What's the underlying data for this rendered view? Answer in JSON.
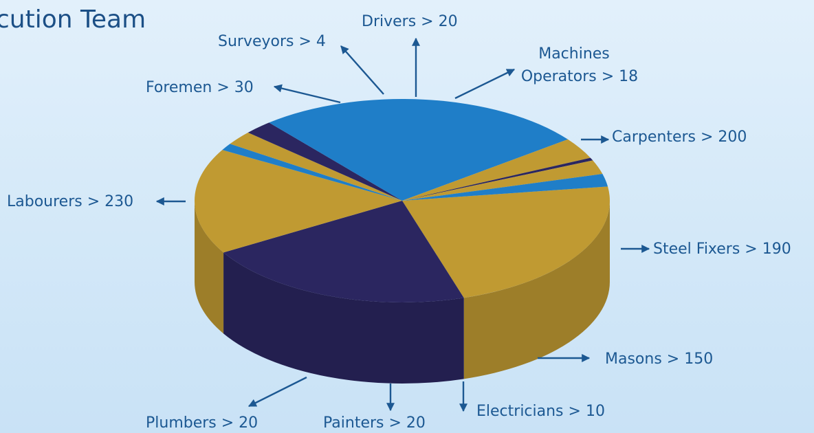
{
  "title": "cution Team",
  "chart_data": {
    "type": "pie",
    "title": "cution Team",
    "slices": [
      {
        "label": "Carpenters > 200",
        "name": "Carpenters",
        "value": 200,
        "color": "#c09a32"
      },
      {
        "label": "Steel Fixers > 190",
        "name": "Steel Fixers",
        "value": 190,
        "color": "#2b2660"
      },
      {
        "label": "Masons > 150",
        "name": "Masons",
        "value": 150,
        "color": "#c09a32"
      },
      {
        "label": "Electricians > 10",
        "name": "Electricians",
        "value": 10,
        "color": "#1f7ec8"
      },
      {
        "label": "Painters > 20",
        "name": "Painters",
        "value": 20,
        "color": "#c09a32"
      },
      {
        "label": "Plumbers > 20",
        "name": "Plumbers",
        "value": 20,
        "color": "#2b2660"
      },
      {
        "label": "Labourers > 230",
        "name": "Labourers",
        "value": 230,
        "color": "#1f7ec8"
      },
      {
        "label": "Foremen > 30",
        "name": "Foremen",
        "value": 30,
        "color": "#c09a32"
      },
      {
        "label": "Surveyors > 4",
        "name": "Surveyors",
        "value": 4,
        "color": "#2b2660"
      },
      {
        "label": "Drivers > 20",
        "name": "Drivers",
        "value": 20,
        "color": "#c09a32"
      },
      {
        "label": [
          "Machines",
          "Operators > 18"
        ],
        "name": "Machines Operators",
        "value": 18,
        "color": "#1f7ec8"
      }
    ]
  }
}
